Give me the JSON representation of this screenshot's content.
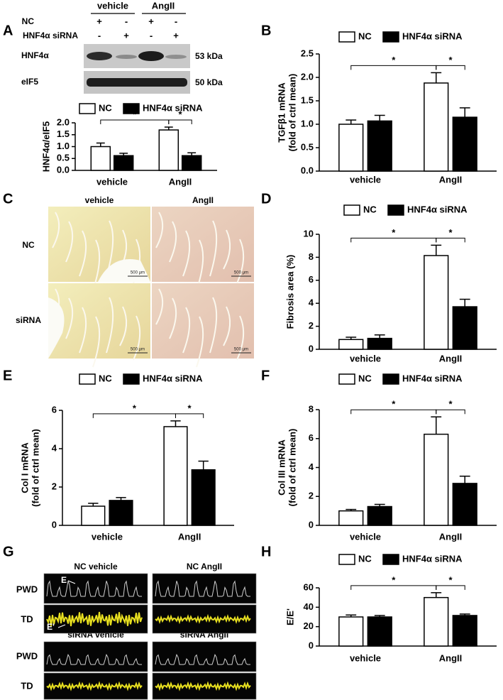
{
  "panel_labels": [
    "A",
    "B",
    "C",
    "D",
    "E",
    "F",
    "G",
    "H"
  ],
  "blot": {
    "groups": [
      "vehicle",
      "AngII"
    ],
    "rows": [
      {
        "label": "NC",
        "signs": [
          "+",
          "-",
          "+",
          "-"
        ]
      },
      {
        "label": "HNF4α siRNA",
        "signs": [
          "-",
          "+",
          "-",
          "+"
        ]
      }
    ],
    "bands": [
      {
        "label": "HNF4α",
        "size": "53 kDa"
      },
      {
        "label": "eIF5",
        "size": "50 kDa"
      }
    ]
  },
  "histology": {
    "columns": [
      "vehicle",
      "AngII"
    ],
    "rows": [
      "NC",
      "siRNA"
    ],
    "scale_bar": "500 μm"
  },
  "echo": {
    "titles": [
      [
        "NC vehicle",
        "NC AngII"
      ],
      [
        "siRNA vehicle",
        "siRNA AngII"
      ]
    ],
    "rows": [
      "PWD",
      "TD"
    ],
    "markers": [
      "E",
      "E'"
    ]
  },
  "chart_data": [
    {
      "type": "bar",
      "ylabel": [
        "HNF4α/eIF5"
      ],
      "categories": [
        "vehicle",
        "AngII"
      ],
      "series": [
        {
          "name": "NC",
          "color": "#ffffff",
          "values": [
            1.0,
            1.7
          ],
          "errors": [
            0.15,
            0.12
          ]
        },
        {
          "name": "HNF4α siRNA",
          "color": "#000000",
          "values": [
            0.62,
            0.62
          ],
          "errors": [
            0.1,
            0.12
          ]
        }
      ],
      "ylim": [
        0,
        2
      ],
      "yticks": [
        {
          "value": 0,
          "label": "0.0"
        },
        0.5,
        {
          "value": 1,
          "label": "1.0"
        },
        1.5,
        {
          "value": 2,
          "label": "2.0"
        }
      ],
      "annotations": [
        "*",
        "*"
      ]
    },
    {
      "type": "bar",
      "ylabel": [
        "TGFβ1 mRNA",
        "(fold of ctrl mean)"
      ],
      "categories": [
        "vehicle",
        "AngII"
      ],
      "series": [
        {
          "name": "NC",
          "color": "#ffffff",
          "values": [
            1.0,
            1.88
          ],
          "errors": [
            0.09,
            0.22
          ]
        },
        {
          "name": "HNF4α siRNA",
          "color": "#000000",
          "values": [
            1.07,
            1.15
          ],
          "errors": [
            0.12,
            0.2
          ]
        }
      ],
      "ylim": [
        0,
        2.5
      ],
      "yticks": [
        {
          "value": 0,
          "label": "0.0"
        },
        0.5,
        {
          "value": 1,
          "label": "1.0"
        },
        1.5,
        {
          "value": 2,
          "label": "2.0"
        },
        2.5
      ],
      "annotations": [
        "*",
        "*"
      ]
    },
    {
      "type": "bar",
      "ylabel": [
        "Fibrosis area (%)"
      ],
      "categories": [
        "vehicle",
        "AngII"
      ],
      "series": [
        {
          "name": "NC",
          "color": "#ffffff",
          "values": [
            0.85,
            8.15
          ],
          "errors": [
            0.2,
            0.9
          ]
        },
        {
          "name": "HNF4α siRNA",
          "color": "#000000",
          "values": [
            0.95,
            3.7
          ],
          "errors": [
            0.3,
            0.65
          ]
        }
      ],
      "ylim": [
        0,
        10
      ],
      "yticks": [
        0,
        2,
        4,
        6,
        8,
        10
      ],
      "annotations": [
        "*",
        "*"
      ]
    },
    {
      "type": "bar",
      "ylabel": [
        "Col I mRNA",
        "(fold of ctrl mean)"
      ],
      "categories": [
        "vehicle",
        "AngII"
      ],
      "series": [
        {
          "name": "NC",
          "color": "#ffffff",
          "values": [
            1.0,
            5.15
          ],
          "errors": [
            0.15,
            0.3
          ]
        },
        {
          "name": "HNF4α siRNA",
          "color": "#000000",
          "values": [
            1.3,
            2.9
          ],
          "errors": [
            0.15,
            0.45
          ]
        }
      ],
      "ylim": [
        0,
        6
      ],
      "yticks": [
        0,
        2,
        4,
        6
      ],
      "annotations": [
        "*",
        "*"
      ]
    },
    {
      "type": "bar",
      "ylabel": [
        "Col III mRNA",
        "(fold of ctrl mean)"
      ],
      "categories": [
        "vehicle",
        "AngII"
      ],
      "series": [
        {
          "name": "NC",
          "color": "#ffffff",
          "values": [
            1.0,
            6.3
          ],
          "errors": [
            0.1,
            1.2
          ]
        },
        {
          "name": "HNF4α siRNA",
          "color": "#000000",
          "values": [
            1.3,
            2.9
          ],
          "errors": [
            0.15,
            0.5
          ]
        }
      ],
      "ylim": [
        0,
        8
      ],
      "yticks": [
        0,
        2,
        4,
        6,
        8
      ],
      "annotations": [
        "*",
        "*"
      ]
    },
    {
      "type": "bar",
      "ylabel": [
        "E/E'"
      ],
      "categories": [
        "vehicle",
        "AngII"
      ],
      "series": [
        {
          "name": "NC",
          "color": "#ffffff",
          "values": [
            30,
            50
          ],
          "errors": [
            2,
            5
          ]
        },
        {
          "name": "HNF4α siRNA",
          "color": "#000000",
          "values": [
            30,
            31.5
          ],
          "errors": [
            1.5,
            1.5
          ]
        }
      ],
      "ylim": [
        0,
        60
      ],
      "yticks": [
        0,
        20,
        40,
        60
      ],
      "annotations": [
        "*",
        "*"
      ]
    }
  ]
}
